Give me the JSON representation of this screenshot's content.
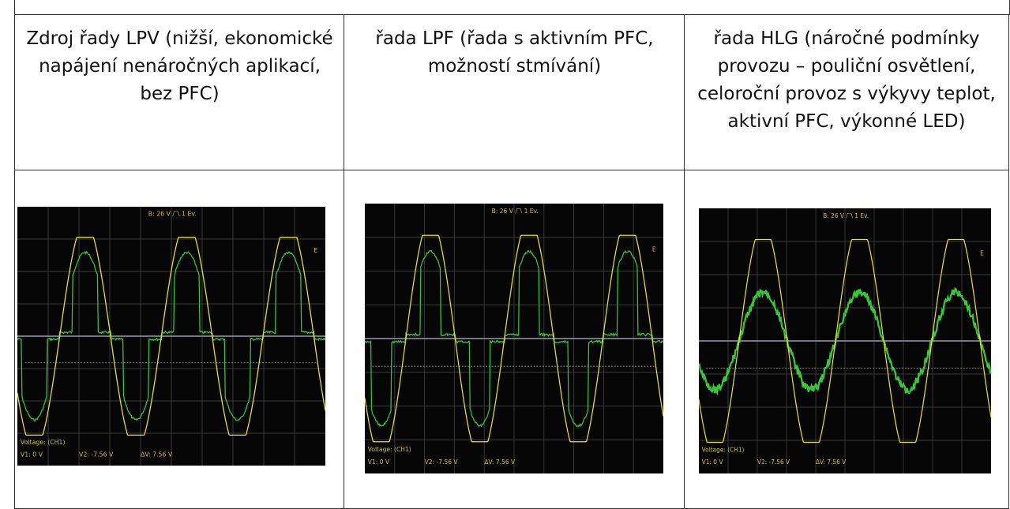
{
  "table": {
    "header": [
      "Zdroj řady LPV (nižší, ekonomické napájení nenáročných aplikací, bez PFC)",
      "řada LPF (řada s aktivním PFC, možností stmívání)",
      "řada HLG (náročné podmínky provozu – pouliční osvětlení, celoroční provoz s výkyvy teplot, aktivní PFC, výkonné LED)"
    ]
  },
  "scopes": [
    {
      "trigger": "B: 26 V /‾\\ 1 Ev.",
      "marker": "E",
      "channel": "Voltage: (CH1)",
      "v1": "V1: 0 V",
      "v2": "V2: -7.56 V",
      "dv": "ΔV: 7.56 V"
    },
    {
      "trigger": "B: 26 V /‾\\ 1 Ev.",
      "marker": "E",
      "channel": "Voltage: (CH1)",
      "v1": "V1: 0 V",
      "v2": "V2: -7.56 V",
      "dv": "ΔV: 7.56 V"
    },
    {
      "trigger": "B: 26 V /‾\\ 1 Ev.",
      "marker": "E",
      "channel": "Voltage: (CH1)",
      "v1": "V1: 0 V",
      "v2": "V2: -7.56 V",
      "dv": "ΔV: 7.56 V"
    }
  ]
}
